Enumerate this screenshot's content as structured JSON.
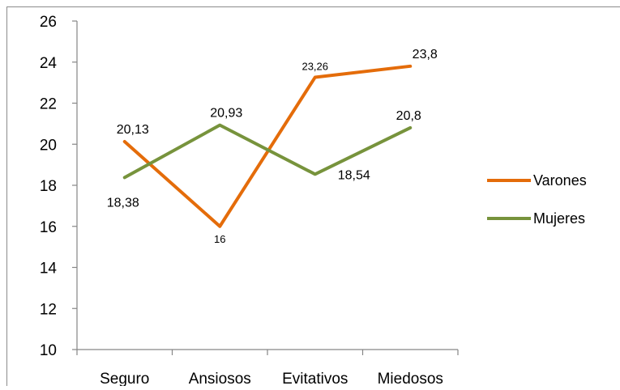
{
  "chart_data": {
    "type": "line",
    "title": "",
    "xlabel": "",
    "ylabel": "",
    "categories": [
      "Seguro",
      "Ansiosos",
      "Evitativos",
      "Miedosos"
    ],
    "ylim": [
      10,
      26
    ],
    "y_ticks": [
      "10",
      "12",
      "14",
      "16",
      "18",
      "20",
      "22",
      "24",
      "26"
    ],
    "grid": false,
    "legend_position": "right",
    "series": [
      {
        "name": "Varones",
        "color": "#E46C0A",
        "values": [
          20.13,
          16,
          23.26,
          23.8
        ],
        "labels": [
          "20,13",
          "16",
          "23,26",
          "23,8"
        ]
      },
      {
        "name": "Mujeres",
        "color": "#77933C",
        "values": [
          18.38,
          20.93,
          18.54,
          20.8
        ],
        "labels": [
          "18,38",
          "20,93",
          "18,54",
          "20,8"
        ]
      }
    ]
  }
}
